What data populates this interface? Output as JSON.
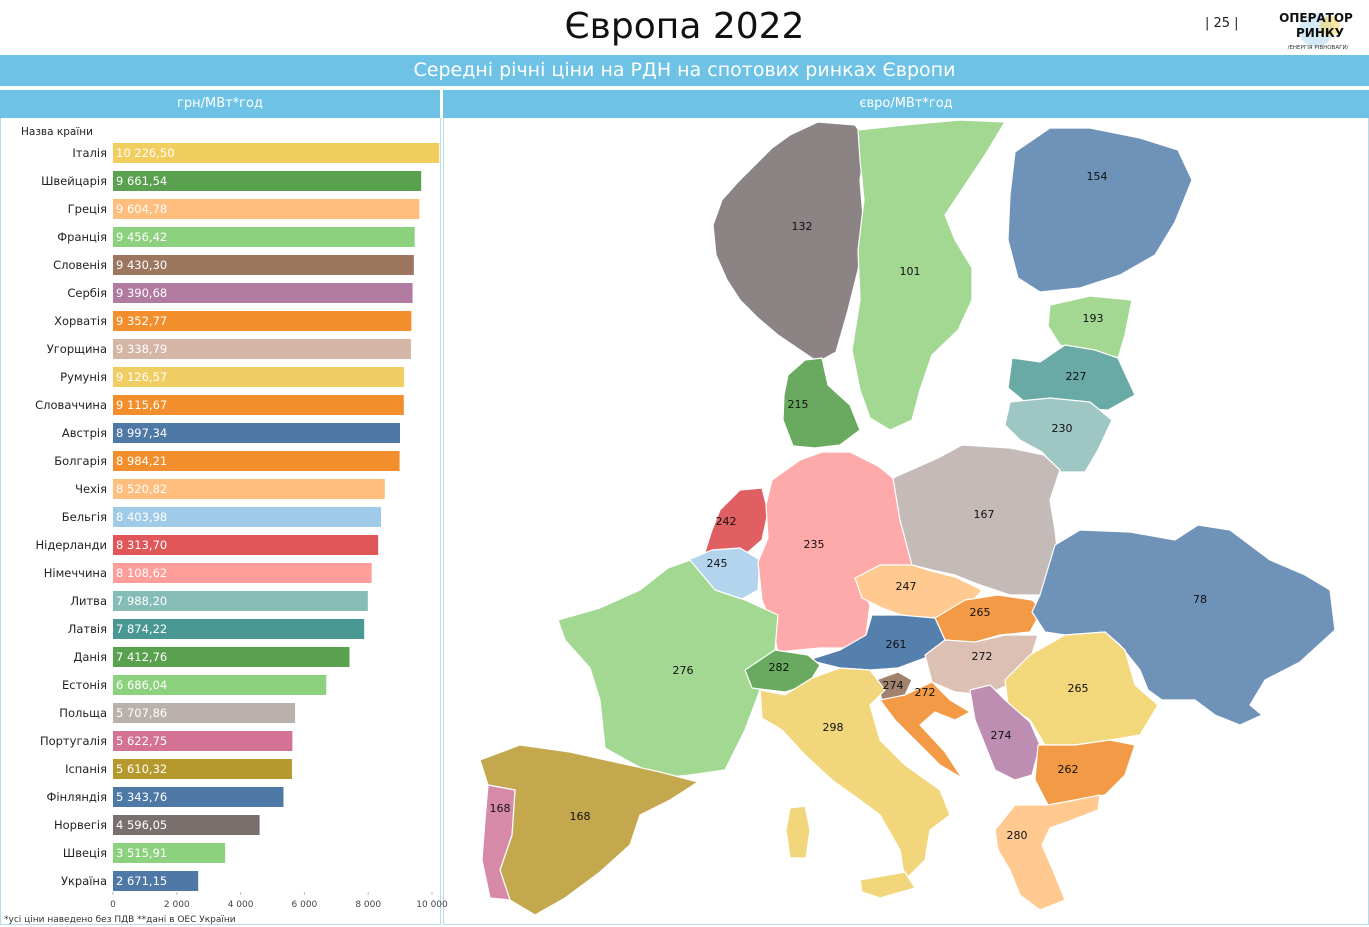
{
  "header": {
    "title": "Європа 2022",
    "page_number": "| 25 |",
    "logo_line1": "ОПЕРАТОР",
    "logo_line2": "РИНКУ",
    "logo_tagline": "/ЕНЕРГІЯ РІВНОВАГИ/"
  },
  "subtitle": "Середні річні ціни на РДН на спотових ринках Європи",
  "left_panel_header": "грн/МВт*год",
  "right_panel_header": "євро/МВт*год",
  "footnote": "*усі ціни наведено без ПДВ  **дані в ОЕС України",
  "chart_data": [
    {
      "type": "bar",
      "orientation": "horizontal",
      "category_axis_title": "Назва країни",
      "unit": "грн/МВт*год",
      "xlim": [
        0,
        10000
      ],
      "xticks": [
        "0",
        "2 000",
        "4 000",
        "6 000",
        "8 000",
        "10 000"
      ],
      "categories": [
        "Італія",
        "Швейцарія",
        "Греція",
        "Франція",
        "Словенія",
        "Сербія",
        "Хорватія",
        "Угорщина",
        "Румунія",
        "Словаччина",
        "Австрія",
        "Болгарія",
        "Чехія",
        "Бельгія",
        "Нідерланди",
        "Німеччина",
        "Литва",
        "Латвія",
        "Данія",
        "Естонія",
        "Польща",
        "Португалія",
        "Іспанія",
        "Фінляндія",
        "Норвегія",
        "Швеція",
        "Україна"
      ],
      "values": [
        10226.5,
        9661.54,
        9604.78,
        9456.42,
        9430.3,
        9390.68,
        9352.77,
        9338.79,
        9126.57,
        9115.67,
        8997.34,
        8984.21,
        8520.82,
        8403.98,
        8313.7,
        8108.62,
        7988.2,
        7874.22,
        7412.76,
        6686.04,
        5707.86,
        5622.75,
        5610.32,
        5343.76,
        4596.05,
        3515.91,
        2671.15
      ],
      "labels": [
        "10 226,50",
        "9 661,54",
        "9 604,78",
        "9 456,42",
        "9 430,30",
        "9 390,68",
        "9 352,77",
        "9 338,79",
        "9 126,57",
        "9 115,67",
        "8 997,34",
        "8 984,21",
        "8 520,82",
        "8 403,98",
        "8 313,70",
        "8 108,62",
        "7 988,20",
        "7 874,22",
        "7 412,76",
        "6 686,04",
        "5 707,86",
        "5 622,75",
        "5 610,32",
        "5 343,76",
        "4 596,05",
        "3 515,91",
        "2 671,15"
      ],
      "colors": [
        "#f2cd60",
        "#59a14f",
        "#ffbe7d",
        "#8cd17d",
        "#9d7660",
        "#b07aa1",
        "#f28e2b",
        "#d4b5a6",
        "#f1ce63",
        "#f28e2b",
        "#4e79a7",
        "#f28e2b",
        "#ffbe7d",
        "#a0cbe8",
        "#e15759",
        "#ff9d9a",
        "#86bcb6",
        "#499894",
        "#59a14f",
        "#8cd17d",
        "#bab0ac",
        "#d37295",
        "#b6992d",
        "#4e79a7",
        "#79706e",
        "#8cd17d",
        "#4e79a7"
      ]
    },
    {
      "type": "map",
      "unit": "євро/МВт*год",
      "regions": [
        {
          "country": "Норвегія",
          "value": "132",
          "color": "#8c8484"
        },
        {
          "country": "Швеція",
          "value": "101",
          "color": "#a2d891"
        },
        {
          "country": "Фінляндія",
          "value": "154",
          "color": "#6f92b8"
        },
        {
          "country": "Естонія",
          "value": "193",
          "color": "#a2d891"
        },
        {
          "country": "Латвія",
          "value": "227",
          "color": "#69a9a6"
        },
        {
          "country": "Литва",
          "value": "230",
          "color": "#9ec7c3"
        },
        {
          "country": "Данія",
          "value": "215",
          "color": "#6aaa60"
        },
        {
          "country": "Нідерланди",
          "value": "242",
          "color": "#e05f62"
        },
        {
          "country": "Німеччина",
          "value": "235",
          "color": "#ffaaaa"
        },
        {
          "country": "Польща",
          "value": "167",
          "color": "#c4bab7"
        },
        {
          "country": "Бельгія",
          "value": "245",
          "color": "#b3d4ed"
        },
        {
          "country": "Чехія",
          "value": "247",
          "color": "#ffc98f"
        },
        {
          "country": "Словаччина",
          "value": "265",
          "color": "#f29a45"
        },
        {
          "country": "Україна",
          "value": "78",
          "color": "#6f92b8"
        },
        {
          "country": "Австрія",
          "value": "261",
          "color": "#5580ad"
        },
        {
          "country": "Угорщина",
          "value": "272",
          "color": "#dcc0b4"
        },
        {
          "country": "Франція",
          "value": "276",
          "color": "#a2d891"
        },
        {
          "country": "Швейцарія",
          "value": "282",
          "color": "#6aaa60"
        },
        {
          "country": "Словенія",
          "value": "274",
          "color": "#a0826e"
        },
        {
          "country": "Хорватія",
          "value": "272",
          "color": "#f29a45"
        },
        {
          "country": "Румунія",
          "value": "265",
          "color": "#f3d77b"
        },
        {
          "country": "Італія",
          "value": "298",
          "color": "#f2d67b"
        },
        {
          "country": "Сербія",
          "value": "274",
          "color": "#bd8db2"
        },
        {
          "country": "Болгарія",
          "value": "262",
          "color": "#f29a45"
        },
        {
          "country": "Португалія",
          "value": "168",
          "color": "#d78aa8"
        },
        {
          "country": "Іспанія",
          "value": "168",
          "color": "#c4a84e"
        },
        {
          "country": "Греція",
          "value": "280",
          "color": "#ffc98f"
        }
      ]
    }
  ]
}
